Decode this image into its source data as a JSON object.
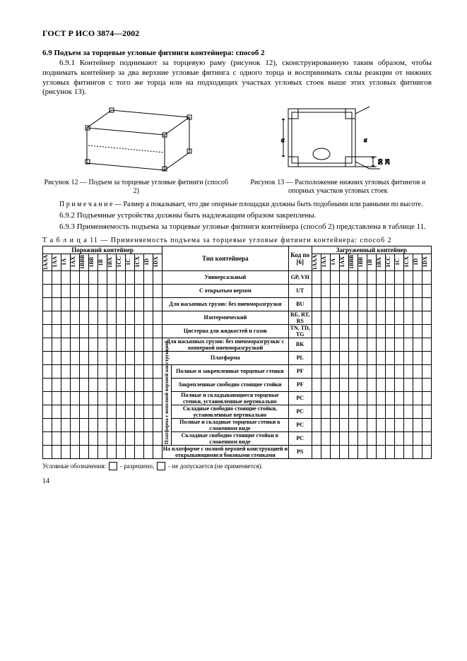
{
  "doc_header": "ГОСТ Р ИСО 3874—2002",
  "sec_6_9": {
    "num": "6.9",
    "title": "Подъем за торцевые угловые фитинги контейнера: способ 2"
  },
  "p_6_9_1": "6.9.1 Контейнер поднимают за торцевую раму (рисунок 12), сконструированную таким образом, чтобы поднимать контейнер за два верхние угловые фитинга с одного торца и воспринимать силы реакции от нижних угловых фитингов с того же торца или на подходящих участках угловых стоек выше этих угловых фитингов (рисунок 13).",
  "fig12_caption": "Рисунок 12 — Подъем за торцевые угловые фитинги (способ 2)",
  "fig13_caption": "Рисунок 13 — Расположение нижних угловых фитингов и опорных участков угловых стоек",
  "fig13_dim1": "50",
  "fig13_dim2": "26",
  "note": "П р и м е ч а н и е — Размер a показывает, что две опорные площадки должны быть подобными или равными по высоте.",
  "p_6_9_2": "6.9.2 Подъемные устройства должны быть надлежащим образом закреплены.",
  "p_6_9_3": "6.9.3 Применяемость подъема за торцевые угловые фитинги контейнера (способ 2) представлена в таблице 11.",
  "table_label": "Т а б л и ц а  11 — Применяемость подъема за торцевые угловые фитинги контейнера: способ 2",
  "head_left": "Порожний контейнер",
  "head_mid": "Тип контейнера",
  "head_code": "Код по [6]",
  "head_right": "Загруженный контейнер",
  "cols_left": [
    "1AAA",
    "1AA",
    "1A",
    "1AX",
    "1BBB",
    "1BB",
    "1B",
    "1BX",
    "1CC",
    "1C",
    "1CX",
    "1D",
    "1DX"
  ],
  "cols_right": [
    "1AAA",
    "1AA",
    "1A",
    "1AX",
    "1BBB",
    "1BB",
    "1B",
    "1BX",
    "1CC",
    "1C",
    "1CX",
    "1D",
    "1DX"
  ],
  "rows": [
    {
      "t": "Универсальный",
      "c": "GP, VH",
      "span": 2
    },
    {
      "t": "С открытым верхом",
      "c": "UT",
      "span": 2
    },
    {
      "t": "Для насыпных грузов: без пневморазгрузки",
      "c": "BU",
      "span": 2
    },
    {
      "t": "Изотермический",
      "c": "RE, RT, RS",
      "span": 2
    },
    {
      "t": "Цистерна для жидкостей и газов",
      "c": "TN, TD, TG",
      "span": 2
    },
    {
      "t": "Для насыпных грузов: без пневморазгрузки/ с хопперной пневморазгрузкой",
      "c": "BK",
      "span": 2
    },
    {
      "t": "Платформа",
      "c": "PL",
      "span": 2
    },
    {
      "t": "Полные и закрепленные торцевые стенки",
      "c": "PF",
      "span": 1,
      "group": true
    },
    {
      "t": "Закрепленные свободно стоящие стойки",
      "c": "PF",
      "span": 1,
      "group": true
    },
    {
      "t": "Полные и складывающиеся торцевые стенки, установленные вертикально",
      "c": "PC",
      "span": 1,
      "group": true
    },
    {
      "t": "Складные свободно стоящие стойки, установленные вертикально",
      "c": "PC",
      "span": 1,
      "group": true
    },
    {
      "t": "Полные и складные торцевые стенки в сложенном виде",
      "c": "PC",
      "span": 1,
      "group": true
    },
    {
      "t": "Складные свободно стоящие стойки в сложенном виде",
      "c": "PC",
      "span": 1,
      "group": true
    },
    {
      "t": "На платформе с полной верхней конструкцией и открывающимися боковыми стенками",
      "c": "PS",
      "span": 2
    }
  ],
  "group_label": "Платформа с неполной верхней конструкцией",
  "legend_a": "Условные обозначения:",
  "legend_b": "- разрешено,",
  "legend_c": "- не допускается (не применяется).",
  "page_num": "14",
  "colors": {
    "text": "#000000",
    "bg": "#ffffff",
    "border": "#000000"
  },
  "typography": {
    "body_pt": 11,
    "caption_pt": 10,
    "table_pt": 8,
    "font": "Times New Roman"
  }
}
